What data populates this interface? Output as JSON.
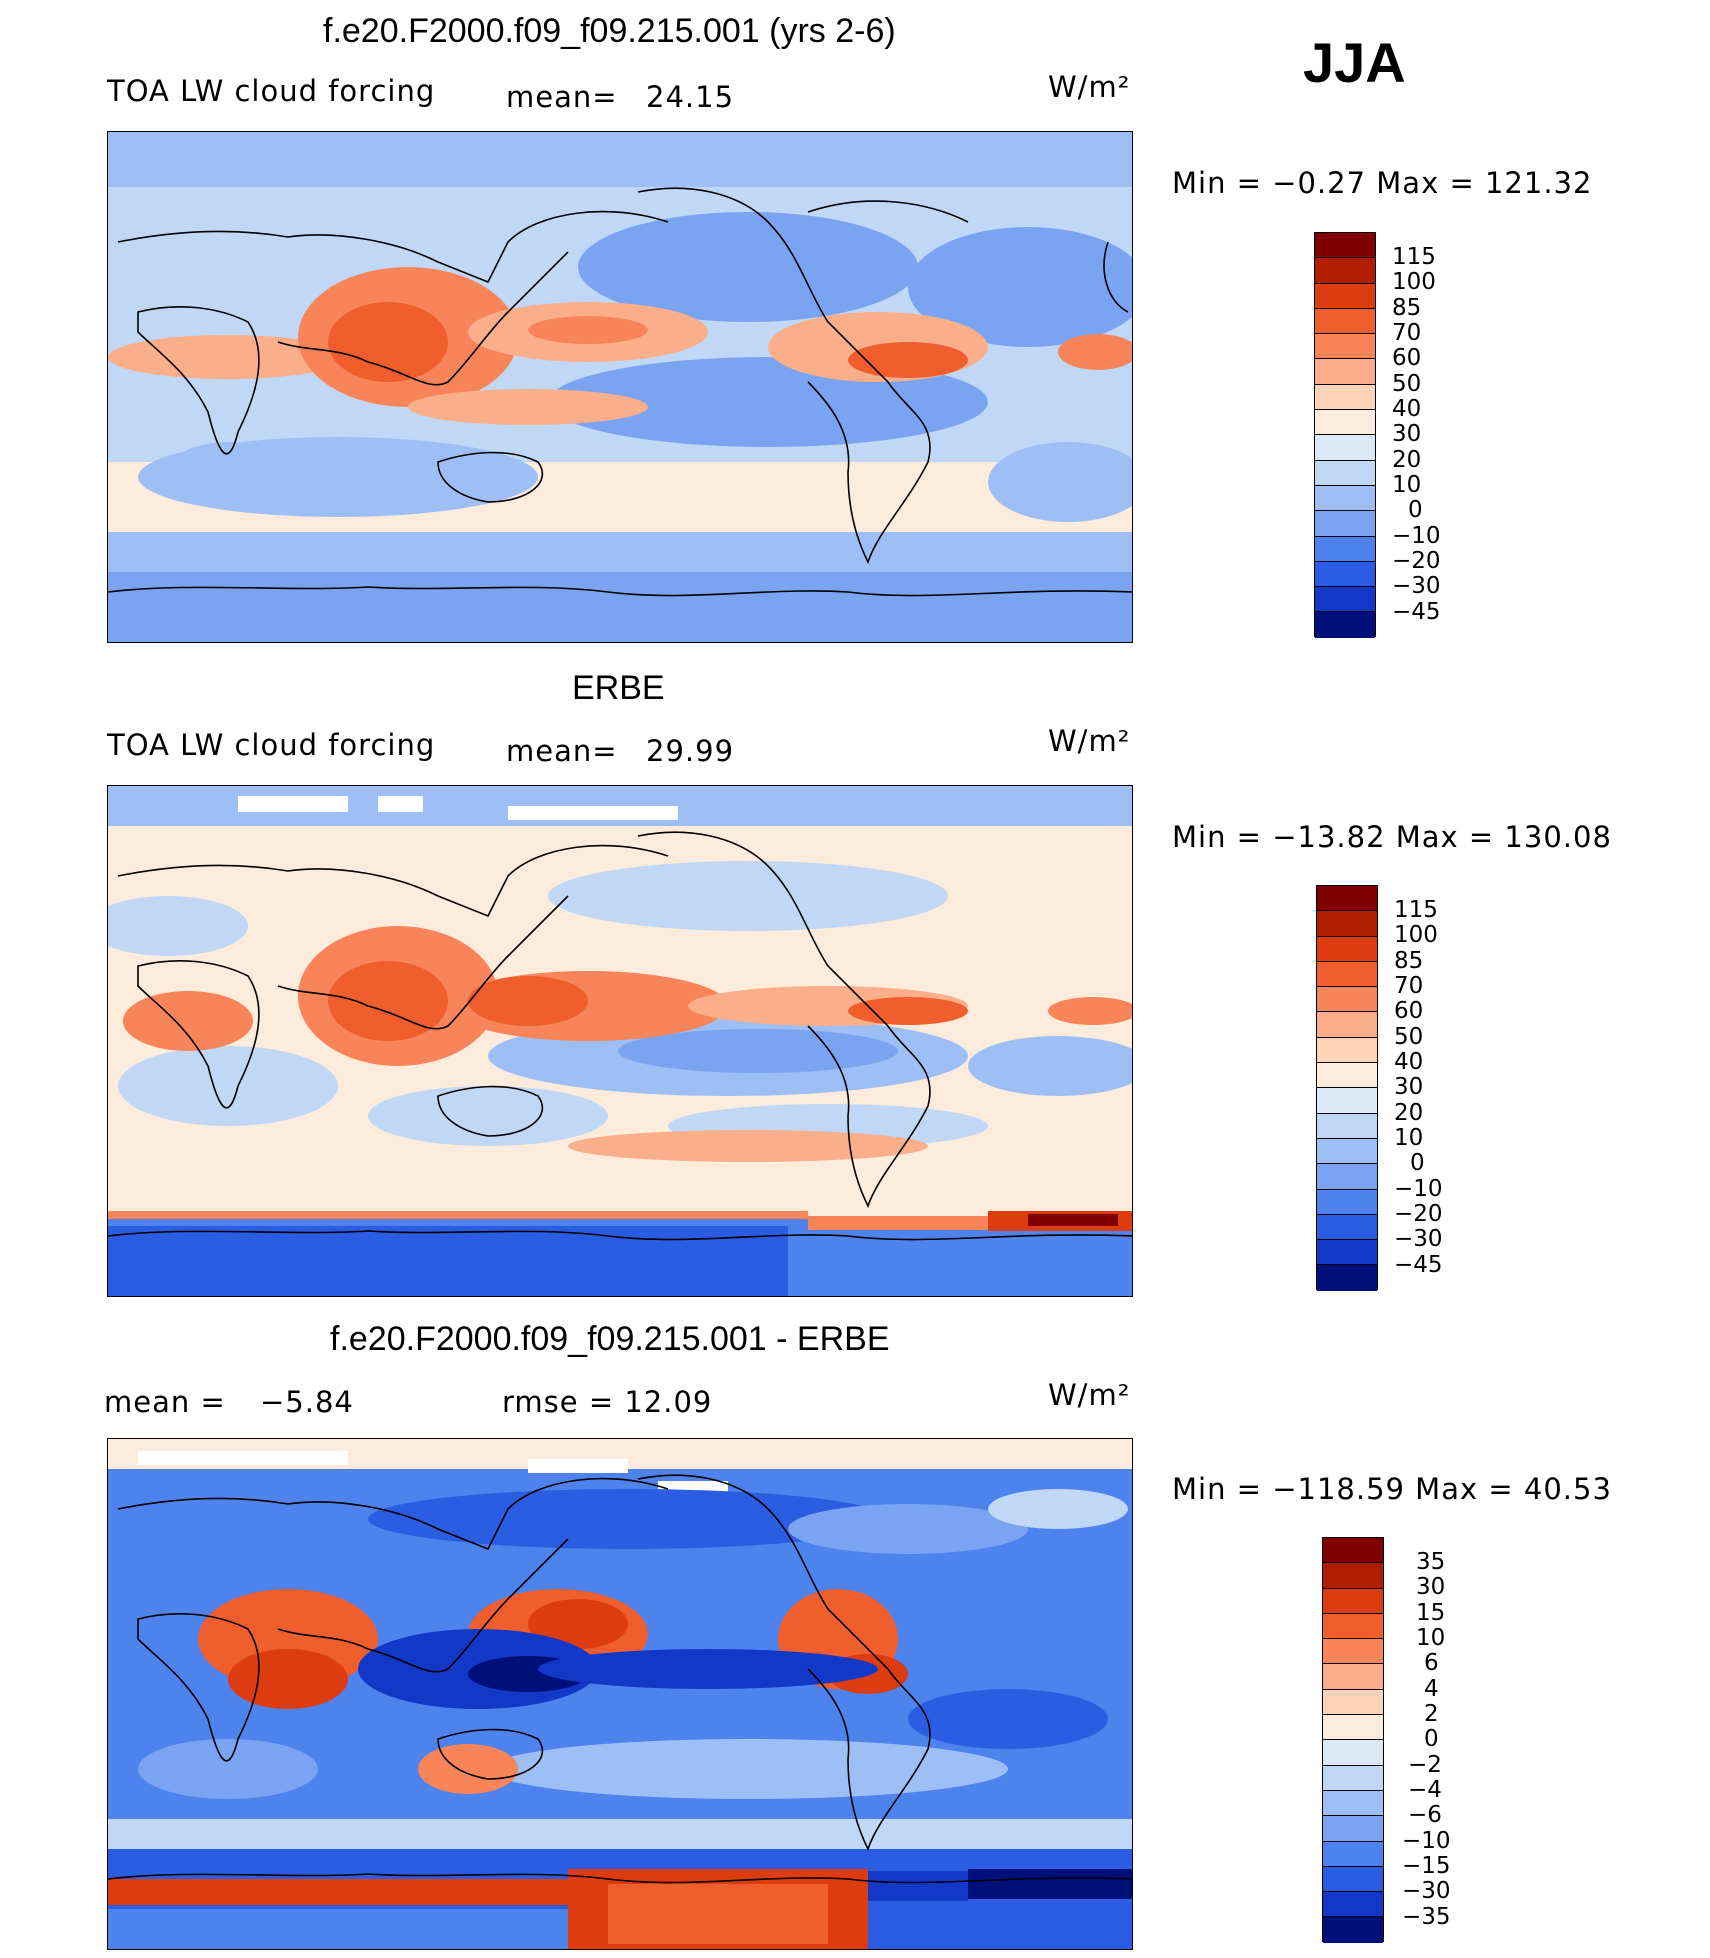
{
  "season": "JJA",
  "colors": {
    "levels_main": [
      "#800000",
      "#b01e00",
      "#dc3c10",
      "#f05e2e",
      "#f8845a",
      "#fbae8a",
      "#fcd4b8",
      "#fdebdc",
      "#dce9f8",
      "#c0d8f6",
      "#9ebff5",
      "#7aa4f2",
      "#4e82ec",
      "#2a5de2",
      "#1238c8",
      "#04229a",
      "#00107a"
    ],
    "levels_diff": [
      "#800000",
      "#b01e00",
      "#dc3c10",
      "#f05e2e",
      "#f8845a",
      "#fbae8a",
      "#fcd4b8",
      "#fdebdc",
      "#dce9f8",
      "#c0d8f6",
      "#9ebff5",
      "#7aa4f2",
      "#4e82ec",
      "#2a5de2",
      "#1238c8",
      "#04229a",
      "#00107a"
    ]
  },
  "panels": [
    {
      "title": "f.e20.F2000.f09_f09.215.001 (yrs 2-6)",
      "left_label": "TOA LW cloud forcing",
      "stat1_label": "mean=",
      "stat1_value": "24.15",
      "units": "W/m²",
      "minmax": "Min =   −0.27  Max  =  121.32",
      "colorbar_labels": [
        "115",
        "100",
        "85",
        "70",
        "60",
        "50",
        "40",
        "30",
        "20",
        "10",
        "0",
        "−10",
        "−20",
        "−30",
        "−45"
      ]
    },
    {
      "title": "ERBE",
      "left_label": "TOA LW cloud forcing",
      "stat1_label": "mean=",
      "stat1_value": "29.99",
      "units": "W/m²",
      "minmax": "Min  = −13.82  Max  =  130.08",
      "colorbar_labels": [
        "115",
        "100",
        "85",
        "70",
        "60",
        "50",
        "40",
        "30",
        "20",
        "10",
        "0",
        "−10",
        "−20",
        "−30",
        "−45"
      ]
    },
    {
      "title": "f.e20.F2000.f09_f09.215.001 - ERBE",
      "left_label": "mean  =",
      "stat1_label": "−5.84",
      "stat1_value": "rmse  =    12.09",
      "units": "W/m²",
      "minmax": "Min  = −118.59  Max  =    40.53",
      "colorbar_labels": [
        "35",
        "30",
        "15",
        "10",
        "6",
        "4",
        "2",
        "0",
        "−2",
        "−4",
        "−6",
        "−10",
        "−15",
        "−30",
        "−35"
      ]
    }
  ]
}
